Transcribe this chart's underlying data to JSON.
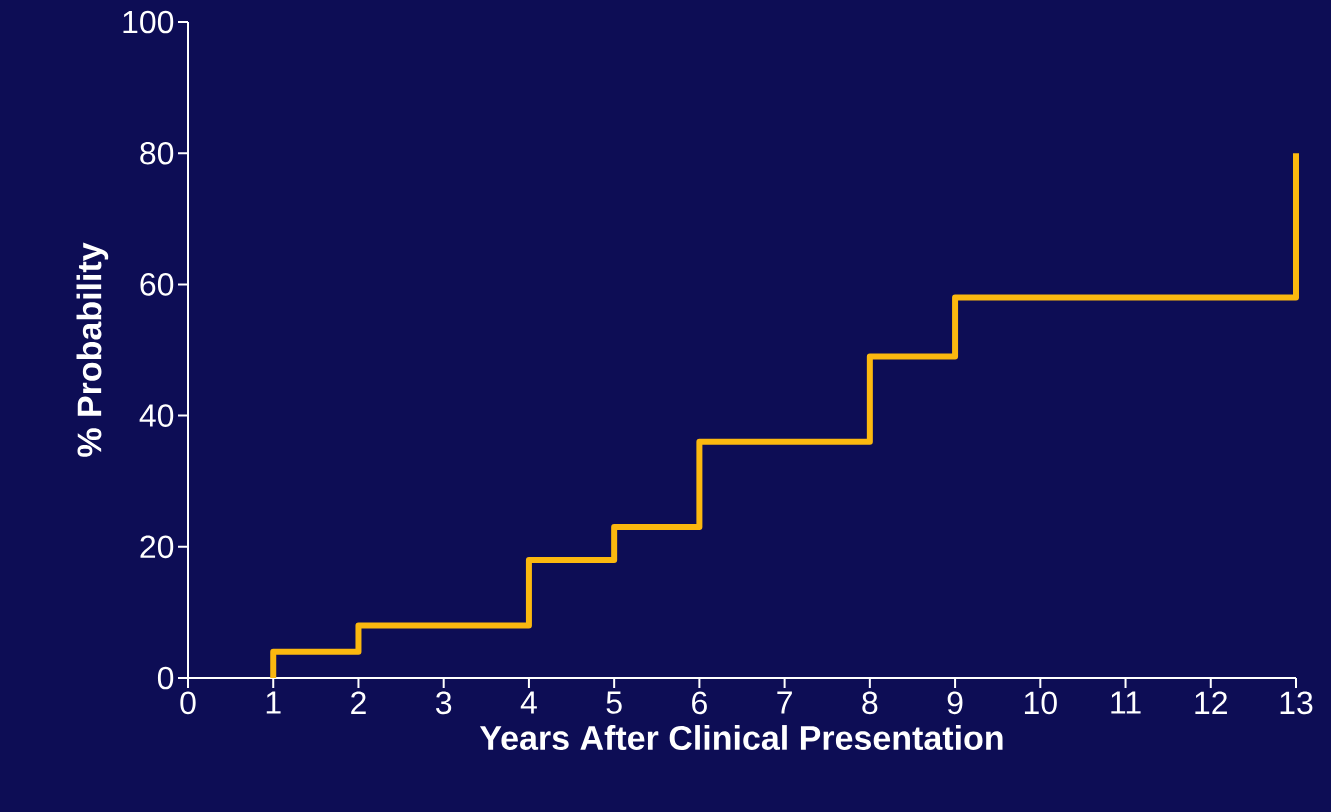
{
  "chart_data": {
    "type": "step",
    "xlabel": "Years After Clinical Presentation",
    "ylabel": "% Probability",
    "x": [
      1,
      1,
      2,
      4,
      5,
      6,
      8,
      9,
      13
    ],
    "values": [
      0,
      4,
      8,
      18,
      23,
      36,
      49,
      58,
      80
    ],
    "color": "#fbb80f",
    "xlim": [
      0,
      13
    ],
    "xticks": [
      0,
      1,
      2,
      3,
      4,
      5,
      6,
      7,
      8,
      9,
      10,
      11,
      12,
      13
    ],
    "ylim": [
      0,
      100
    ],
    "yticks": [
      0,
      20,
      40,
      60,
      80,
      100
    ]
  }
}
